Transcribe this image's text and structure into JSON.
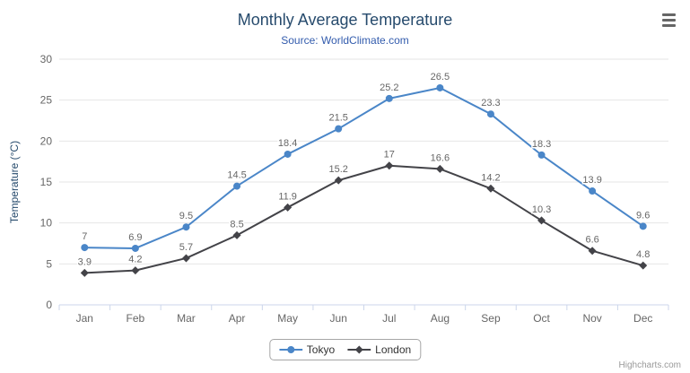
{
  "chart_data": {
    "type": "line",
    "title": "Monthly Average Temperature",
    "subtitle": "Source: WorldClimate.com",
    "categories": [
      "Jan",
      "Feb",
      "Mar",
      "Apr",
      "May",
      "Jun",
      "Jul",
      "Aug",
      "Sep",
      "Oct",
      "Nov",
      "Dec"
    ],
    "series": [
      {
        "name": "Tokyo",
        "color": "#4a86c8",
        "marker": "circle",
        "values": [
          7,
          6.9,
          9.5,
          14.5,
          18.4,
          21.5,
          25.2,
          26.5,
          23.3,
          18.3,
          13.9,
          9.6
        ]
      },
      {
        "name": "London",
        "color": "#434348",
        "marker": "diamond",
        "values": [
          3.9,
          4.2,
          5.7,
          8.5,
          11.9,
          15.2,
          17,
          16.6,
          14.2,
          10.3,
          6.6,
          4.8
        ]
      }
    ],
    "xlabel": "",
    "ylabel": "Temperature (°C)",
    "ylim": [
      0,
      30
    ],
    "ytick_interval": 5,
    "grid": true,
    "legend_position": "bottom",
    "colors": {
      "grid_line": "#e6e6e6",
      "axis_line": "#ccd6eb",
      "axis_label": "#666666",
      "data_label": "#666666",
      "title": "#274b6d",
      "subtitle": "#335cad"
    }
  },
  "credits": "Highcharts.com"
}
